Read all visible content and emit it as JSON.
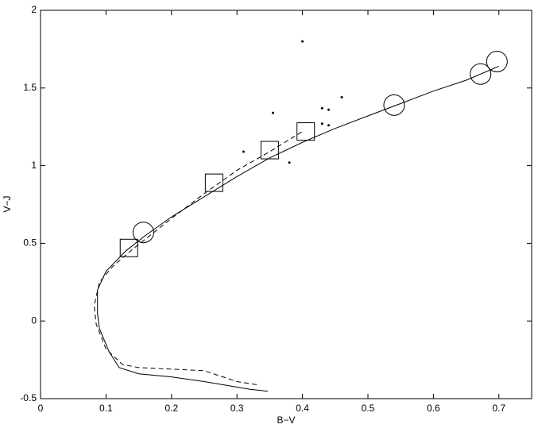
{
  "chart_data": {
    "type": "line",
    "x_label": "B−V",
    "y_label": "V−J",
    "xlim": [
      0,
      0.75
    ],
    "ylim": [
      -0.5,
      2
    ],
    "xticks": [
      0,
      0.1,
      0.2,
      0.3,
      0.4,
      0.5,
      0.6,
      0.7
    ],
    "yticks": [
      -0.5,
      0,
      0.5,
      1,
      1.5,
      2
    ],
    "grid": false,
    "series": [
      {
        "color": "#000000",
        "line": "solid",
        "marker": "none",
        "x": [
          0.347,
          0.32,
          0.25,
          0.2,
          0.15,
          0.12,
          0.105,
          0.09,
          0.087,
          0.087,
          0.1,
          0.13,
          0.16,
          0.2,
          0.25,
          0.3,
          0.35,
          0.4,
          0.45,
          0.5,
          0.55,
          0.6,
          0.65,
          0.7
        ],
        "values": [
          -0.452,
          -0.44,
          -0.39,
          -0.36,
          -0.34,
          -0.3,
          -0.2,
          -0.05,
          0.05,
          0.2,
          0.32,
          0.45,
          0.55,
          0.67,
          0.8,
          0.93,
          1.05,
          1.15,
          1.24,
          1.32,
          1.4,
          1.48,
          1.55,
          1.64
        ]
      },
      {
        "color": "#000000",
        "line": "dashed",
        "marker": "none",
        "x": [
          0.33,
          0.3,
          0.25,
          0.2,
          0.15,
          0.125,
          0.1,
          0.085,
          0.082,
          0.09,
          0.11,
          0.14,
          0.2,
          0.25,
          0.3,
          0.35,
          0.4
        ],
        "values": [
          -0.41,
          -0.39,
          -0.32,
          -0.31,
          -0.3,
          -0.28,
          -0.18,
          -0.02,
          0.1,
          0.25,
          0.35,
          0.46,
          0.66,
          0.82,
          0.97,
          1.09,
          1.22
        ]
      },
      {
        "color": "#000000",
        "line": "none",
        "marker": "dot",
        "x": [
          0.4,
          0.46,
          0.43,
          0.44,
          0.355,
          0.43,
          0.44,
          0.31,
          0.38
        ],
        "values": [
          1.8,
          1.44,
          1.37,
          1.36,
          1.34,
          1.27,
          1.26,
          1.09,
          1.02
        ]
      },
      {
        "color": "#000000",
        "line": "none",
        "marker": "circle",
        "x": [
          0.157,
          0.54,
          0.672,
          0.697
        ],
        "values": [
          0.57,
          1.39,
          1.59,
          1.67
        ]
      },
      {
        "color": "#000000",
        "line": "none",
        "marker": "square",
        "x": [
          0.135,
          0.265,
          0.35,
          0.405
        ],
        "values": [
          0.47,
          0.89,
          1.1,
          1.22
        ]
      }
    ]
  }
}
